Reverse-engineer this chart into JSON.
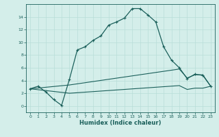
{
  "xlabel": "Humidex (Indice chaleur)",
  "bg_color": "#d4eeea",
  "line_color": "#1a5f5a",
  "grid_color": "#b8ddd8",
  "xlim": [
    -0.5,
    23.5
  ],
  "ylim": [
    -1.0,
    16.0
  ],
  "yticks": [
    0,
    2,
    4,
    6,
    8,
    10,
    12,
    14
  ],
  "xticks": [
    0,
    1,
    2,
    3,
    4,
    5,
    6,
    7,
    8,
    9,
    10,
    11,
    12,
    13,
    14,
    15,
    16,
    17,
    18,
    19,
    20,
    21,
    22,
    23
  ],
  "curve1_x": [
    0,
    1,
    2,
    3,
    4,
    5,
    6,
    7,
    8,
    9,
    10,
    11,
    12,
    13,
    14,
    15,
    16,
    17,
    18,
    19,
    20,
    21,
    22,
    23
  ],
  "curve1_y": [
    2.7,
    3.1,
    2.2,
    1.0,
    0.1,
    4.2,
    8.8,
    9.3,
    10.3,
    11.0,
    12.7,
    13.2,
    13.8,
    15.3,
    15.3,
    14.3,
    13.2,
    9.3,
    7.2,
    6.0,
    4.3,
    5.0,
    4.8,
    3.1
  ],
  "curve2_x": [
    0,
    5,
    19,
    20,
    21,
    22,
    23
  ],
  "curve2_y": [
    2.7,
    3.3,
    5.8,
    4.4,
    4.9,
    4.9,
    3.1
  ],
  "curve3_x": [
    0,
    5,
    19,
    20,
    21,
    22,
    23
  ],
  "curve3_y": [
    2.7,
    2.0,
    3.2,
    2.6,
    2.8,
    2.8,
    3.1
  ]
}
